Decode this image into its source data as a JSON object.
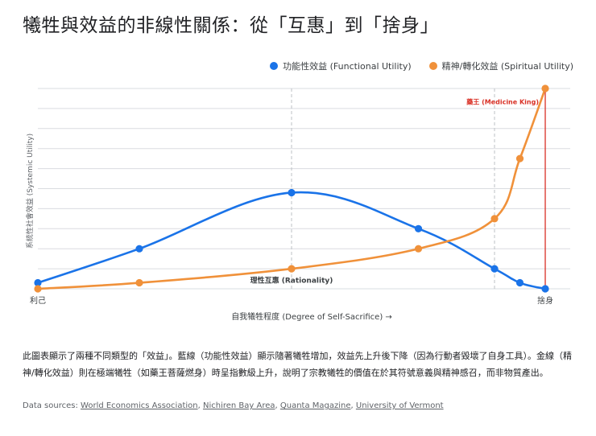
{
  "title": "犧牲與效益的非線性關係：從「互惠」到「捨身」",
  "legend": {
    "functional": "功能性效益 (Functional Utility)",
    "spiritual": "精神/轉化效益 (Spiritual Utility)"
  },
  "colors": {
    "functional": "#1a73e8",
    "spiritual": "#f0913a",
    "marker": "#d93025",
    "grid": "#dadce0"
  },
  "chart_data": {
    "type": "line",
    "xlabel": "自我犧牲程度 (Degree of Self-Sacrifice) →",
    "ylabel": "系統性社會效益 (Systemic Utility)",
    "x_tick_labels": [
      {
        "x": 0,
        "label": "利己"
      },
      {
        "x": 100,
        "label": "捨身"
      }
    ],
    "xlim": [
      0,
      100
    ],
    "ylim": [
      0,
      100
    ],
    "grid": true,
    "series": [
      {
        "name": "功能性效益 (Functional Utility)",
        "key": "functional",
        "points": [
          [
            0,
            3
          ],
          [
            20,
            20
          ],
          [
            50,
            48
          ],
          [
            75,
            30
          ],
          [
            90,
            10
          ],
          [
            95,
            3
          ],
          [
            100,
            0
          ]
        ]
      },
      {
        "name": "精神/轉化效益 (Spiritual Utility)",
        "key": "spiritual",
        "points": [
          [
            0,
            0
          ],
          [
            20,
            3
          ],
          [
            50,
            10
          ],
          [
            75,
            20
          ],
          [
            90,
            35
          ],
          [
            95,
            65
          ],
          [
            100,
            100
          ]
        ]
      }
    ],
    "reference_lines": [
      {
        "x": 50,
        "style": "dashed"
      },
      {
        "x": 90,
        "style": "dashed"
      },
      {
        "x": 100,
        "style": "solid-red"
      }
    ],
    "annotations": [
      {
        "text": "理性互惠 (Rationality)",
        "x": 50,
        "y": 3,
        "weight": "bold"
      },
      {
        "text": "藥王 (Medicine King)",
        "x": 100,
        "y": 97,
        "color": "red"
      }
    ]
  },
  "caption": "此圖表顯示了兩種不同類型的「效益」。藍線（功能性效益）顯示隨著犧牲增加，效益先上升後下降（因為行動者毀壞了自身工具）。金線（精神/轉化效益）則在極端犧牲（如藥王菩薩燃身）時呈指數級上升，說明了宗教犧牲的價值在於其符號意義與精神感召，而非物質產出。",
  "sources": {
    "prefix": "Data sources: ",
    "links": [
      "World Economics Association",
      "Nichiren Bay Area",
      "Quanta Magazine",
      "University of Vermont"
    ]
  }
}
